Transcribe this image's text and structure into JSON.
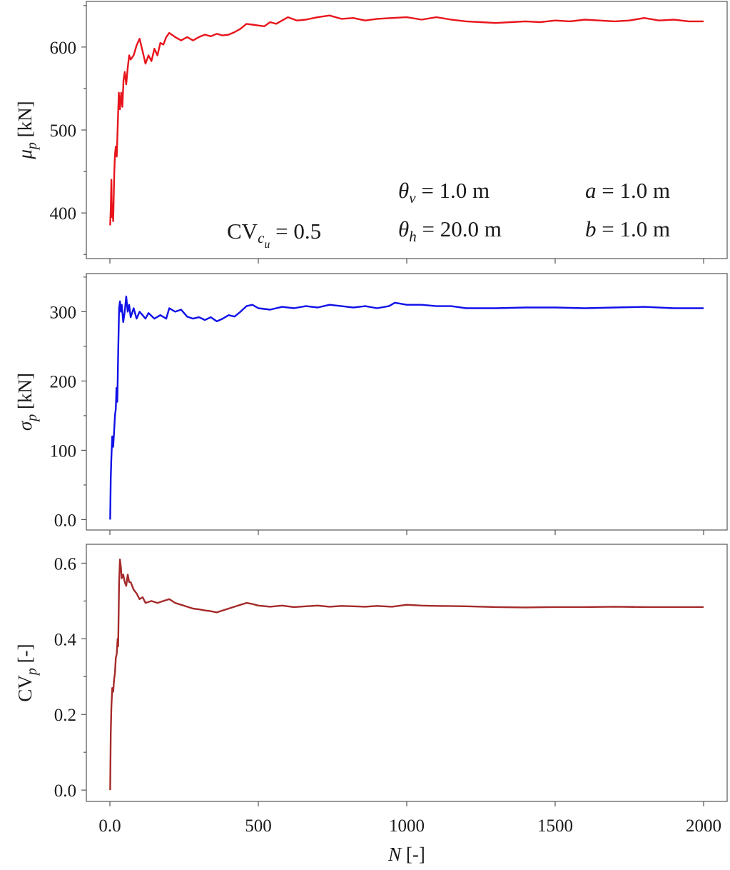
{
  "figure": {
    "xlabel": "N [-]",
    "annotations": {
      "theta_v": "θv = 1.0 m",
      "theta_h": "θh = 20.0 m",
      "a": "a = 1.0 m",
      "b": "b = 1.0 m",
      "cv_cu": "CVcu = 0.5"
    }
  },
  "chart_data": [
    {
      "type": "line",
      "title": "",
      "ylabel": "μp [kN]",
      "xlabel": "",
      "xlim": [
        0,
        2000
      ],
      "ylim": [
        345,
        655
      ],
      "yticks": [
        400,
        500,
        600
      ],
      "ytick_labels": [
        "400",
        "500",
        "600"
      ],
      "xticks": [
        0,
        500,
        1000,
        1500,
        2000
      ],
      "grid": false,
      "legend": "none",
      "series": [
        {
          "color": "#e8141b",
          "x": [
            1,
            3,
            5,
            7,
            9,
            11,
            13,
            15,
            17,
            20,
            23,
            26,
            30,
            34,
            38,
            42,
            46,
            50,
            55,
            60,
            65,
            70,
            80,
            90,
            100,
            110,
            120,
            130,
            140,
            150,
            160,
            170,
            180,
            190,
            200,
            220,
            240,
            260,
            280,
            300,
            320,
            340,
            360,
            380,
            400,
            420,
            440,
            460,
            480,
            500,
            520,
            540,
            560,
            580,
            600,
            630,
            660,
            700,
            740,
            780,
            820,
            860,
            900,
            950,
            1000,
            1050,
            1100,
            1150,
            1200,
            1250,
            1300,
            1350,
            1400,
            1450,
            1500,
            1550,
            1600,
            1650,
            1700,
            1750,
            1800,
            1850,
            1900,
            1950,
            2000
          ],
          "y": [
            385,
            405,
            440,
            395,
            410,
            390,
            420,
            450,
            470,
            480,
            468,
            500,
            545,
            525,
            545,
            528,
            560,
            570,
            555,
            575,
            590,
            585,
            590,
            602,
            610,
            595,
            580,
            590,
            583,
            598,
            590,
            605,
            603,
            612,
            617,
            612,
            608,
            612,
            608,
            612,
            615,
            613,
            616,
            614,
            615,
            618,
            622,
            628,
            627,
            626,
            625,
            630,
            628,
            632,
            636,
            632,
            633,
            636,
            638,
            634,
            635,
            632,
            634,
            635,
            636,
            633,
            636,
            633,
            631,
            630,
            629,
            630,
            631,
            630,
            632,
            631,
            633,
            632,
            631,
            632,
            635,
            632,
            633,
            631,
            631
          ]
        }
      ]
    },
    {
      "type": "line",
      "title": "",
      "ylabel": "σp [kN]",
      "xlabel": "",
      "xlim": [
        0,
        2000
      ],
      "ylim": [
        -15,
        355
      ],
      "yticks": [
        0,
        100,
        200,
        300
      ],
      "ytick_labels": [
        "0.0",
        "100",
        "200",
        "300"
      ],
      "xticks": [
        0,
        500,
        1000,
        1500,
        2000
      ],
      "grid": false,
      "legend": "none",
      "series": [
        {
          "color": "#1010e8",
          "x": [
            1,
            3,
            5,
            8,
            11,
            14,
            17,
            20,
            22,
            25,
            28,
            31,
            34,
            37,
            40,
            45,
            50,
            55,
            60,
            65,
            70,
            80,
            90,
            100,
            110,
            120,
            130,
            150,
            170,
            190,
            200,
            220,
            240,
            260,
            280,
            300,
            320,
            340,
            360,
            380,
            400,
            420,
            440,
            460,
            480,
            500,
            540,
            580,
            620,
            660,
            700,
            740,
            780,
            820,
            860,
            900,
            940,
            960,
            1000,
            1050,
            1100,
            1150,
            1200,
            1300,
            1400,
            1500,
            1600,
            1700,
            1800,
            1900,
            2000
          ],
          "y": [
            0,
            60,
            90,
            120,
            105,
            125,
            150,
            160,
            190,
            170,
            240,
            305,
            315,
            300,
            310,
            285,
            300,
            322,
            300,
            310,
            292,
            305,
            290,
            300,
            295,
            290,
            298,
            290,
            295,
            290,
            305,
            300,
            303,
            293,
            290,
            292,
            288,
            292,
            286,
            290,
            295,
            293,
            300,
            308,
            310,
            305,
            303,
            307,
            305,
            308,
            306,
            310,
            308,
            306,
            308,
            305,
            308,
            313,
            310,
            310,
            308,
            308,
            305,
            305,
            306,
            306,
            305,
            306,
            307,
            305,
            305
          ]
        }
      ]
    },
    {
      "type": "line",
      "title": "",
      "ylabel": "CVp [-]",
      "xlabel": "N [-]",
      "xlim": [
        -0.07,
        2000
      ],
      "ylim": [
        -0.03,
        0.65
      ],
      "yticks": [
        0.0,
        0.2,
        0.4,
        0.6
      ],
      "ytick_labels": [
        "0.0",
        "0.2",
        "0.4",
        "0.6"
      ],
      "xticks": [
        0,
        500,
        1000,
        1500,
        2000
      ],
      "xtick_labels": [
        "0.0",
        "500",
        "1000",
        "1500",
        "2000"
      ],
      "grid": false,
      "legend": "none",
      "series": [
        {
          "color": "#a52a2a",
          "x": [
            1,
            3,
            5,
            8,
            11,
            14,
            17,
            20,
            23,
            26,
            28,
            31,
            34,
            37,
            40,
            45,
            50,
            55,
            60,
            65,
            70,
            80,
            90,
            100,
            110,
            120,
            140,
            160,
            180,
            200,
            220,
            240,
            260,
            280,
            300,
            320,
            340,
            360,
            380,
            400,
            420,
            440,
            460,
            480,
            500,
            540,
            580,
            620,
            660,
            700,
            740,
            780,
            820,
            860,
            900,
            950,
            1000,
            1050,
            1100,
            1200,
            1300,
            1400,
            1500,
            1600,
            1700,
            1800,
            1900,
            2000
          ],
          "y": [
            0.0,
            0.15,
            0.22,
            0.27,
            0.26,
            0.29,
            0.31,
            0.35,
            0.36,
            0.4,
            0.38,
            0.55,
            0.61,
            0.59,
            0.56,
            0.57,
            0.55,
            0.54,
            0.57,
            0.55,
            0.55,
            0.53,
            0.52,
            0.505,
            0.51,
            0.495,
            0.5,
            0.495,
            0.5,
            0.505,
            0.495,
            0.49,
            0.485,
            0.48,
            0.478,
            0.475,
            0.473,
            0.47,
            0.475,
            0.48,
            0.485,
            0.49,
            0.495,
            0.492,
            0.488,
            0.485,
            0.488,
            0.484,
            0.486,
            0.488,
            0.485,
            0.487,
            0.486,
            0.485,
            0.487,
            0.485,
            0.49,
            0.488,
            0.487,
            0.486,
            0.484,
            0.483,
            0.484,
            0.484,
            0.485,
            0.484,
            0.484,
            0.484
          ]
        }
      ]
    }
  ]
}
